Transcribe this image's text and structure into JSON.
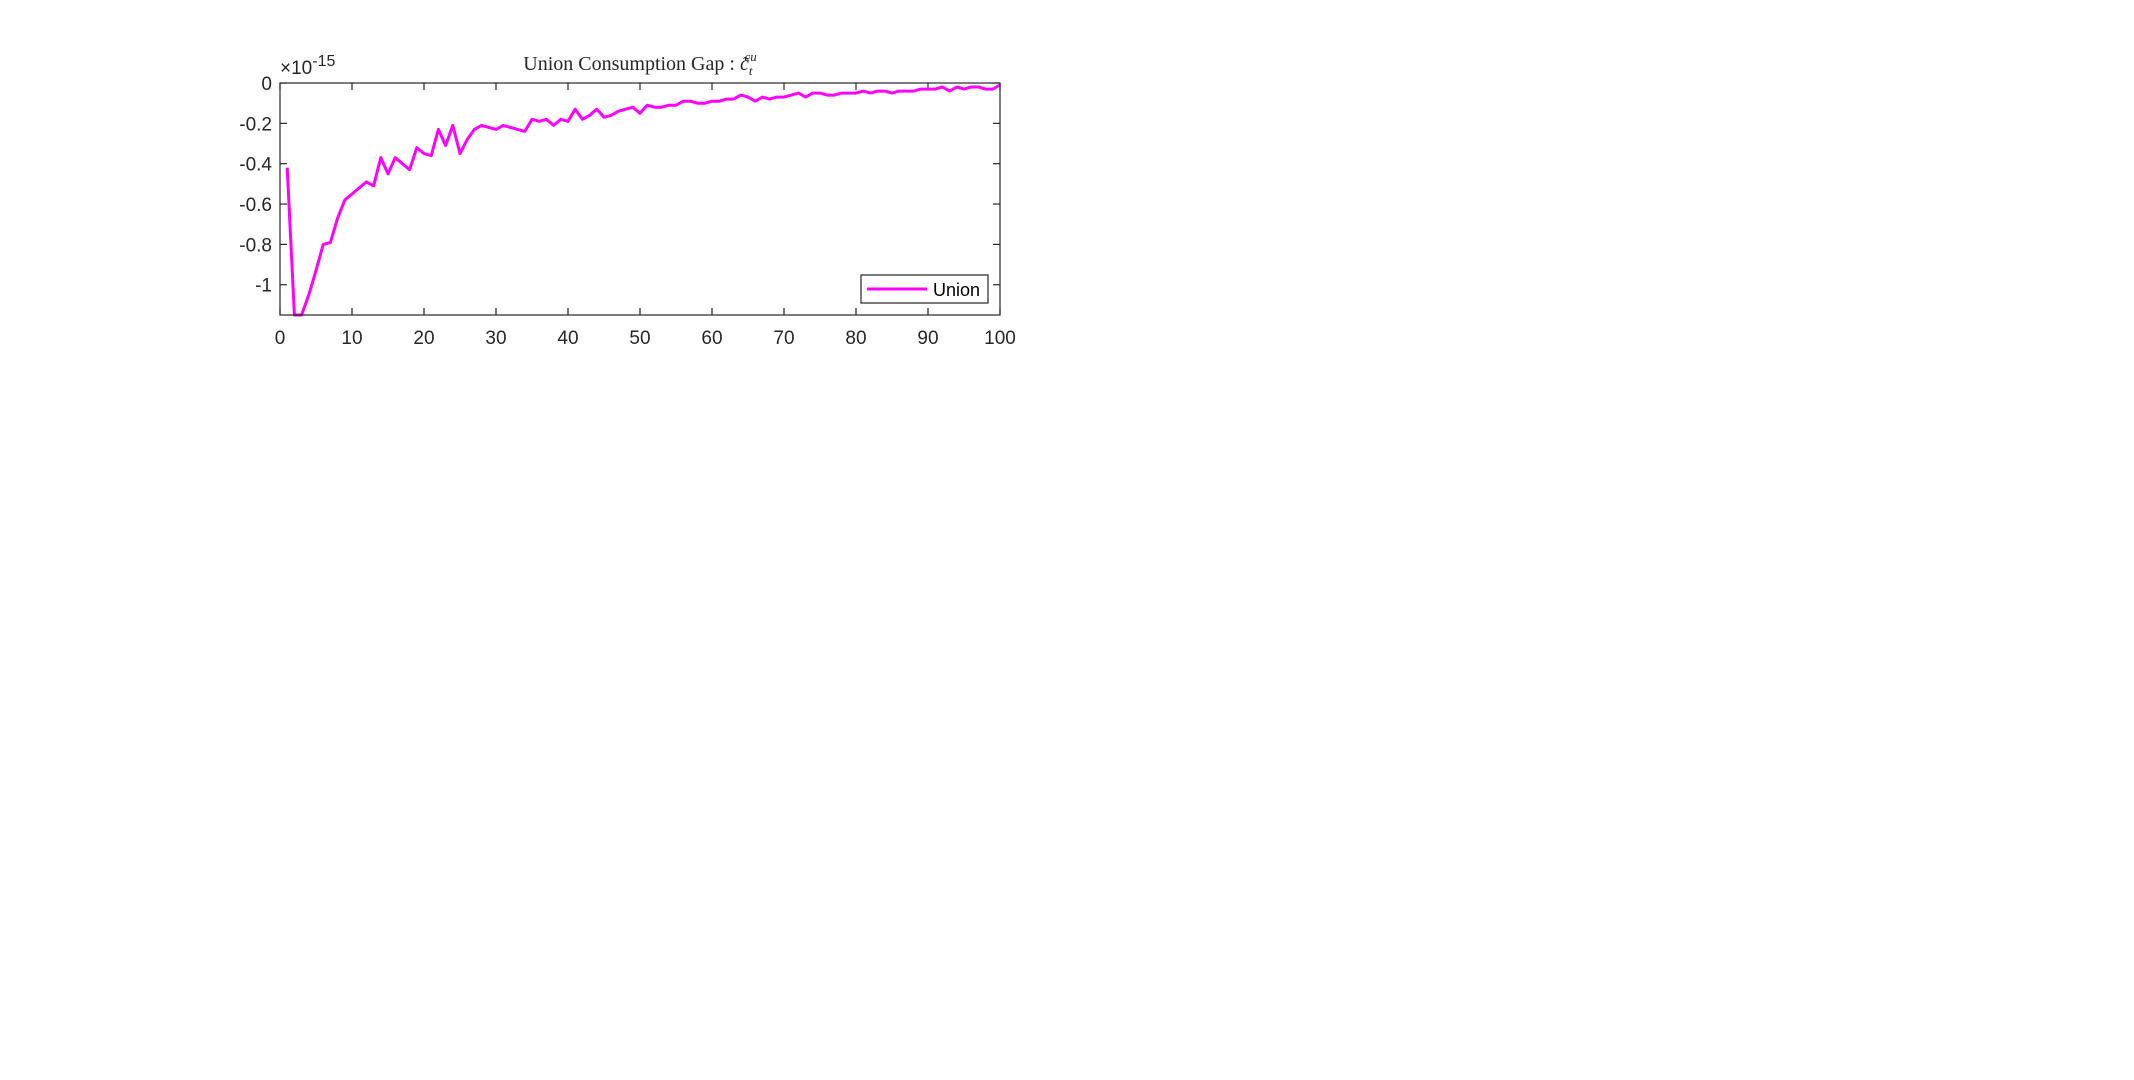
{
  "colors": {
    "series": "#ff00ff",
    "axis": "#262626",
    "background": "#ffffff"
  },
  "chart_data": {
    "type": "line",
    "title": "Union Consumption Gap : ",
    "title_math": {
      "base": "c̃",
      "sub": "t",
      "sup": "cu"
    },
    "xlabel": "",
    "ylabel": "",
    "y_exponent_label": {
      "base": "×10",
      "exp": "-15"
    },
    "xlim": [
      0,
      100
    ],
    "ylim": [
      -1.15,
      0
    ],
    "x_ticks": [
      0,
      10,
      20,
      30,
      40,
      50,
      60,
      70,
      80,
      90,
      100
    ],
    "y_ticks": [
      0,
      -0.2,
      -0.4,
      -0.6,
      -0.8,
      -1
    ],
    "y_tick_labels": [
      "0",
      "-0.2",
      "-0.4",
      "-0.6",
      "-0.8",
      "-1"
    ],
    "grid": false,
    "legend": {
      "placement": "bottom-right",
      "entries": [
        "Union"
      ]
    },
    "series": [
      {
        "name": "Union",
        "x": [
          1,
          2,
          3,
          4,
          5,
          6,
          7,
          8,
          9,
          10,
          11,
          12,
          13,
          14,
          15,
          16,
          17,
          18,
          19,
          20,
          21,
          22,
          23,
          24,
          25,
          26,
          27,
          28,
          29,
          30,
          31,
          32,
          33,
          34,
          35,
          36,
          37,
          38,
          39,
          40,
          41,
          42,
          43,
          44,
          45,
          46,
          47,
          48,
          49,
          50,
          51,
          52,
          53,
          54,
          55,
          56,
          57,
          58,
          59,
          60,
          61,
          62,
          63,
          64,
          65,
          66,
          67,
          68,
          69,
          70,
          71,
          72,
          73,
          74,
          75,
          76,
          77,
          78,
          79,
          80,
          81,
          82,
          83,
          84,
          85,
          86,
          87,
          88,
          89,
          90,
          91,
          92,
          93,
          94,
          95,
          96,
          97,
          98,
          99,
          100
        ],
        "values": [
          -0.42,
          -1.15,
          -1.15,
          -1.05,
          -0.93,
          -0.8,
          -0.79,
          -0.67,
          -0.58,
          -0.55,
          -0.52,
          -0.49,
          -0.51,
          -0.37,
          -0.45,
          -0.37,
          -0.4,
          -0.43,
          -0.32,
          -0.35,
          -0.36,
          -0.23,
          -0.31,
          -0.21,
          -0.35,
          -0.28,
          -0.23,
          -0.21,
          -0.22,
          -0.23,
          -0.21,
          -0.22,
          -0.23,
          -0.24,
          -0.18,
          -0.19,
          -0.18,
          -0.21,
          -0.18,
          -0.19,
          -0.13,
          -0.18,
          -0.16,
          -0.13,
          -0.17,
          -0.16,
          -0.14,
          -0.13,
          -0.12,
          -0.15,
          -0.11,
          -0.12,
          -0.12,
          -0.11,
          -0.11,
          -0.09,
          -0.09,
          -0.1,
          -0.1,
          -0.09,
          -0.09,
          -0.08,
          -0.08,
          -0.06,
          -0.07,
          -0.09,
          -0.07,
          -0.08,
          -0.07,
          -0.07,
          -0.06,
          -0.05,
          -0.07,
          -0.05,
          -0.05,
          -0.06,
          -0.06,
          -0.05,
          -0.05,
          -0.05,
          -0.04,
          -0.05,
          -0.04,
          -0.04,
          -0.05,
          -0.04,
          -0.04,
          -0.04,
          -0.03,
          -0.03,
          -0.03,
          -0.02,
          -0.04,
          -0.02,
          -0.03,
          -0.02,
          -0.02,
          -0.03,
          -0.03,
          -0.01
        ]
      }
    ]
  }
}
